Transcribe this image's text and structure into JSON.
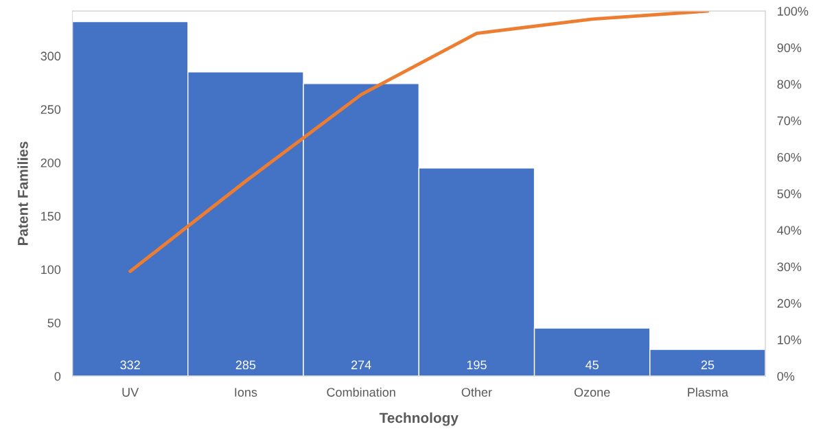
{
  "chart_data": {
    "type": "bar",
    "xlabel": "Technology",
    "ylabel": "Patent Families",
    "categories": [
      "UV",
      "Ions",
      "Combination",
      "Other",
      "Ozone",
      "Plasma"
    ],
    "series": [
      {
        "color": "#4472c4",
        "values": [
          332,
          285,
          274,
          195,
          45,
          25
        ],
        "value_labels": [
          "332",
          "285",
          "274",
          "195",
          "45",
          "25"
        ]
      },
      {
        "type": "line",
        "axis": "y2",
        "color": "#ed7d31",
        "values": [
          28.7,
          53.4,
          77.1,
          93.9,
          97.8,
          100
        ]
      }
    ],
    "ylim": [
      0,
      342
    ],
    "yticks": [
      0,
      50,
      100,
      150,
      200,
      250,
      300
    ],
    "y2lim": [
      0,
      100
    ],
    "y2ticks": [
      {
        "value": 0,
        "label": "0%"
      },
      {
        "value": 10,
        "label": "10%"
      },
      {
        "value": 20,
        "label": "20%"
      },
      {
        "value": 30,
        "label": "30%"
      },
      {
        "value": 40,
        "label": "40%"
      },
      {
        "value": 50,
        "label": "50%"
      },
      {
        "value": 60,
        "label": "60%"
      },
      {
        "value": 70,
        "label": "70%"
      },
      {
        "value": 80,
        "label": "80%"
      },
      {
        "value": 90,
        "label": "90%"
      },
      {
        "value": 100,
        "label": "100%"
      }
    ],
    "grid": false,
    "legend": false,
    "marker": "none",
    "line_style": "solid"
  }
}
